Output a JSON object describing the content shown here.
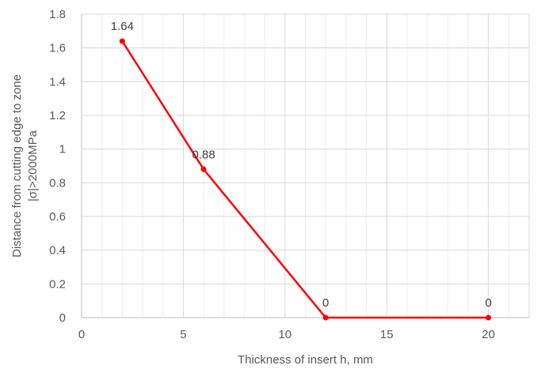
{
  "chart_data": {
    "type": "scatter",
    "mode": "lines+markers",
    "title": "",
    "xlabel": "Thickness of insert h, mm",
    "ylabel_lines": [
      "Distance from cutting edge to zone",
      "|σ|>2000MPa"
    ],
    "xlim": [
      0,
      22
    ],
    "ylim": [
      0,
      1.8
    ],
    "x_ticks": [
      0,
      5,
      10,
      15,
      20
    ],
    "y_ticks": [
      0,
      0.2,
      0.4,
      0.6,
      0.8,
      1,
      1.2,
      1.4,
      1.6,
      1.8
    ],
    "x_tick_labels": [
      "0",
      "5",
      "10",
      "15",
      "20"
    ],
    "y_tick_labels": [
      "0",
      "0.2",
      "0.4",
      "0.6",
      "0.8",
      "1",
      "1.2",
      "1.4",
      "1.6",
      "1.8"
    ],
    "grid": {
      "major": true,
      "minor_x": true
    },
    "legend": "none",
    "series": [
      {
        "x": [
          2,
          6,
          12,
          20
        ],
        "y": [
          1.64,
          0.88,
          0,
          0
        ],
        "labels": [
          "1.64",
          "0.88",
          "0",
          "0"
        ],
        "color": "#ff0000"
      }
    ]
  }
}
